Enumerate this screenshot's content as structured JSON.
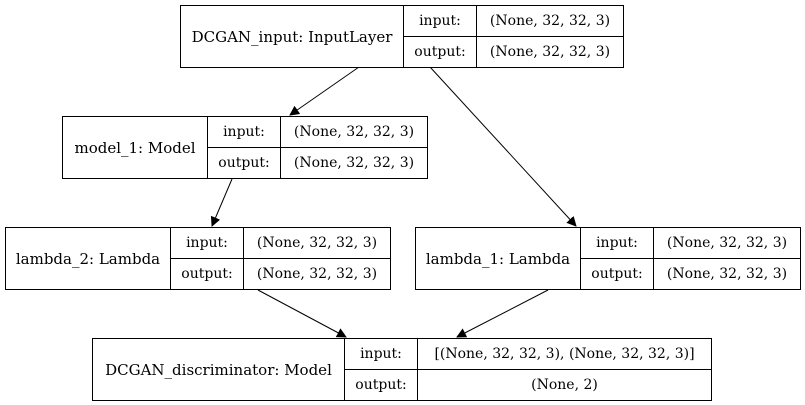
{
  "nodes": {
    "input_layer": {
      "name": "DCGAN_input: InputLayer",
      "input_label": "input:",
      "output_label": "output:",
      "input_value": "(None, 32, 32, 3)",
      "output_value": "(None, 32, 32, 3)"
    },
    "model_1": {
      "name": "model_1: Model",
      "input_label": "input:",
      "output_label": "output:",
      "input_value": "(None, 32, 32, 3)",
      "output_value": "(None, 32, 32, 3)"
    },
    "lambda_2": {
      "name": "lambda_2: Lambda",
      "input_label": "input:",
      "output_label": "output:",
      "input_value": "(None, 32, 32, 3)",
      "output_value": "(None, 32, 32, 3)"
    },
    "lambda_1": {
      "name": "lambda_1: Lambda",
      "input_label": "input:",
      "output_label": "output:",
      "input_value": "(None, 32, 32, 3)",
      "output_value": "(None, 32, 32, 3)"
    },
    "discriminator": {
      "name": "DCGAN_discriminator: Model",
      "input_label": "input:",
      "output_label": "output:",
      "input_value": "[(None, 32, 32, 3), (None, 32, 32, 3)]",
      "output_value": "(None, 2)"
    }
  },
  "edges": [
    {
      "from": "input_layer",
      "to": "model_1"
    },
    {
      "from": "input_layer",
      "to": "lambda_1"
    },
    {
      "from": "model_1",
      "to": "lambda_2"
    },
    {
      "from": "lambda_2",
      "to": "discriminator"
    },
    {
      "from": "lambda_1",
      "to": "discriminator"
    }
  ]
}
